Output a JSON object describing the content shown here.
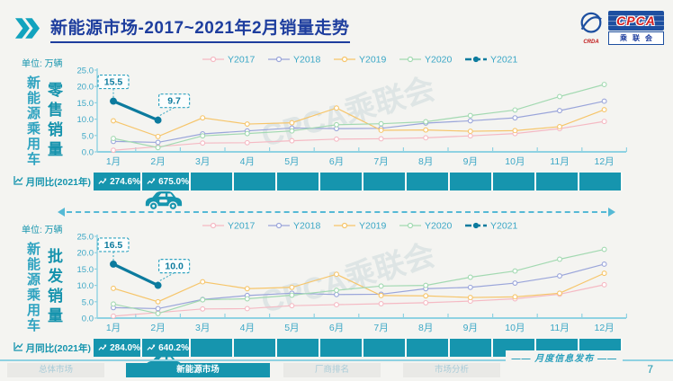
{
  "header": {
    "title": "新能源市场-2017~2021年2月销量走势",
    "logo": {
      "cpca": "CPCA",
      "org": "乘联会",
      "crda": "CRDA"
    }
  },
  "meta": {
    "unit_label": "单位: 万辆",
    "watermark": "CPCA乘联会"
  },
  "chart_data": [
    {
      "type": "line",
      "title": "新能源乘用车零售销量",
      "category_label": "新能源乘用车",
      "metric_label": "零售销量",
      "unit": "万辆",
      "x": [
        "1月",
        "2月",
        "3月",
        "4月",
        "5月",
        "6月",
        "7月",
        "8月",
        "9月",
        "10月",
        "11月",
        "12月"
      ],
      "ylim": [
        0,
        25
      ],
      "yticks": [
        "25.0",
        "20.0",
        "15.0",
        "10.0",
        "5.0",
        "0.0"
      ],
      "legend_position": "top",
      "grid": false,
      "series": [
        {
          "name": "Y2017",
          "color": "#f5b9c3",
          "values": [
            0.5,
            1.6,
            2.7,
            2.8,
            3.4,
            3.9,
            4.0,
            4.3,
            4.9,
            5.6,
            7.1,
            9.3
          ]
        },
        {
          "name": "Y2018",
          "color": "#9aa5da",
          "values": [
            3.2,
            2.9,
            5.5,
            6.4,
            7.3,
            7.1,
            7.2,
            8.8,
            9.5,
            10.4,
            12.6,
            15.5
          ]
        },
        {
          "name": "Y2019",
          "color": "#f6c56a",
          "values": [
            9.5,
            4.7,
            10.4,
            8.5,
            8.9,
            13.4,
            6.6,
            6.7,
            6.3,
            6.5,
            7.7,
            12.9
          ]
        },
        {
          "name": "Y2020",
          "color": "#a2d9b1",
          "values": [
            4.1,
            1.3,
            4.9,
            5.6,
            6.4,
            8.3,
            8.6,
            9.2,
            11.1,
            12.8,
            16.9,
            20.6
          ]
        },
        {
          "name": "Y2021",
          "color": "#0c7b9e",
          "values": [
            15.5,
            9.7
          ]
        }
      ],
      "annotations": [
        {
          "text": "15.5",
          "month_index": 0
        },
        {
          "text": "9.7",
          "month_index": 1
        }
      ],
      "yoy": {
        "label": "月同比(2021年)",
        "values": [
          "274.6%",
          "675.0%"
        ]
      }
    },
    {
      "type": "line",
      "title": "新能源乘用车批发销量",
      "category_label": "新能源乘用车",
      "metric_label": "批发销量",
      "unit": "万辆",
      "x": [
        "1月",
        "2月",
        "3月",
        "4月",
        "5月",
        "6月",
        "7月",
        "8月",
        "9月",
        "10月",
        "11月",
        "12月"
      ],
      "ylim": [
        0,
        25
      ],
      "yticks": [
        "25.0",
        "20.0",
        "15.0",
        "10.0",
        "5.0",
        "0.0"
      ],
      "legend_position": "top",
      "grid": false,
      "series": [
        {
          "name": "Y2017",
          "color": "#f5b9c3",
          "values": [
            0.6,
            1.7,
            2.8,
            2.9,
            3.8,
            4.1,
            4.4,
            4.7,
            5.2,
            5.9,
            7.3,
            10.2
          ]
        },
        {
          "name": "Y2018",
          "color": "#9aa5da",
          "values": [
            3.2,
            2.9,
            5.7,
            6.9,
            7.6,
            7.2,
            7.3,
            9.0,
            9.4,
            10.7,
            12.9,
            16.5
          ]
        },
        {
          "name": "Y2019",
          "color": "#f6c56a",
          "values": [
            9.1,
            5.0,
            11.1,
            9.0,
            9.4,
            13.4,
            6.9,
            6.8,
            6.3,
            6.5,
            7.6,
            13.7
          ]
        },
        {
          "name": "Y2020",
          "color": "#a2d9b1",
          "values": [
            4.3,
            1.4,
            5.6,
            5.9,
            7.0,
            8.5,
            9.8,
            10.0,
            12.5,
            14.4,
            18.0,
            21.0
          ]
        },
        {
          "name": "Y2021",
          "color": "#0c7b9e",
          "values": [
            16.5,
            10.0
          ]
        }
      ],
      "annotations": [
        {
          "text": "16.5",
          "month_index": 0
        },
        {
          "text": "10.0",
          "month_index": 1
        }
      ],
      "yoy": {
        "label": "月同比(2021年)",
        "values": [
          "284.0%",
          "640.2%"
        ]
      }
    }
  ],
  "footer": {
    "tabs": [
      {
        "label": "总体市场",
        "active": false
      },
      {
        "label": "新能源市场",
        "active": true
      },
      {
        "label": "厂商排名",
        "active": false
      },
      {
        "label": "市场分析",
        "active": false
      }
    ],
    "publication": "月度信息发布",
    "page": "7"
  },
  "colors": {
    "accent_teal": "#1695ae",
    "axis_cyan": "#8fd2e2",
    "tick_text": "#3ba7c6",
    "title_navy": "#1e3e9e",
    "y2021_dark": "#0c7b9e"
  }
}
